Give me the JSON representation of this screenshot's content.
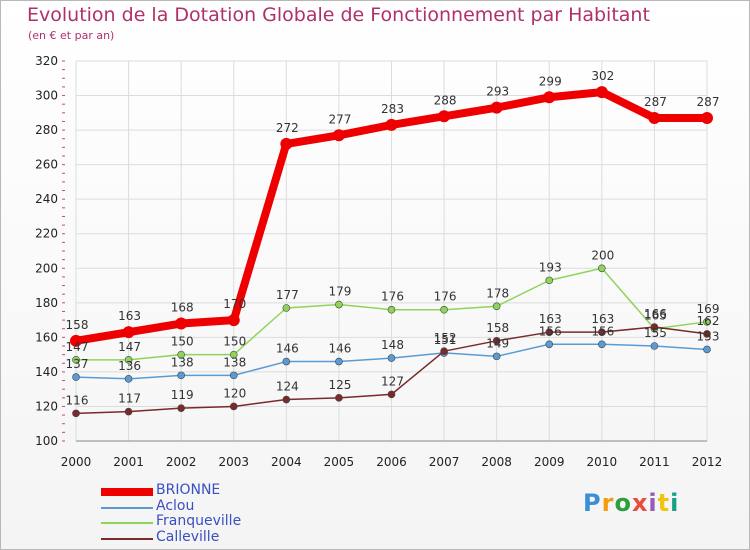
{
  "header": {
    "title": "Evolution de la Dotation Globale de Fonctionnement par Habitant",
    "subtitle": "(en € et par an)"
  },
  "logo": {
    "text": "Proxiti",
    "colors": [
      "#3a8fd6",
      "#f39c12",
      "#2e9e3f",
      "#e74c3c",
      "#9b59b6",
      "#f1c40f",
      "#16a085"
    ]
  },
  "chart_data": {
    "type": "line",
    "title": "Evolution de la Dotation Globale de Fonctionnement par Habitant",
    "subtitle": "(en € et par an)",
    "xlabel": "",
    "ylabel": "",
    "categories": [
      "2000",
      "2001",
      "2002",
      "2003",
      "2004",
      "2005",
      "2006",
      "2007",
      "2008",
      "2009",
      "2010",
      "2011",
      "2012"
    ],
    "ylim": [
      100,
      320
    ],
    "yticks": [
      100,
      120,
      140,
      160,
      180,
      200,
      220,
      240,
      260,
      280,
      300,
      320
    ],
    "grid": true,
    "legend_position": "bottom-left",
    "series": [
      {
        "name": "BRIONNE",
        "color": "#ee0000",
        "values": [
          158,
          163,
          168,
          170,
          272,
          277,
          283,
          288,
          293,
          299,
          302,
          287,
          287
        ]
      },
      {
        "name": "Aclou",
        "color": "#5b9bd5",
        "values": [
          137,
          136,
          138,
          138,
          146,
          146,
          148,
          151,
          149,
          156,
          156,
          155,
          153
        ]
      },
      {
        "name": "Franqueville",
        "color": "#8fd45a",
        "values": [
          147,
          147,
          150,
          150,
          177,
          179,
          176,
          176,
          178,
          193,
          200,
          165,
          169
        ]
      },
      {
        "name": "Calleville",
        "color": "#7a2a2a",
        "values": [
          116,
          117,
          119,
          120,
          124,
          125,
          127,
          152,
          158,
          163,
          163,
          166,
          162
        ]
      }
    ]
  }
}
